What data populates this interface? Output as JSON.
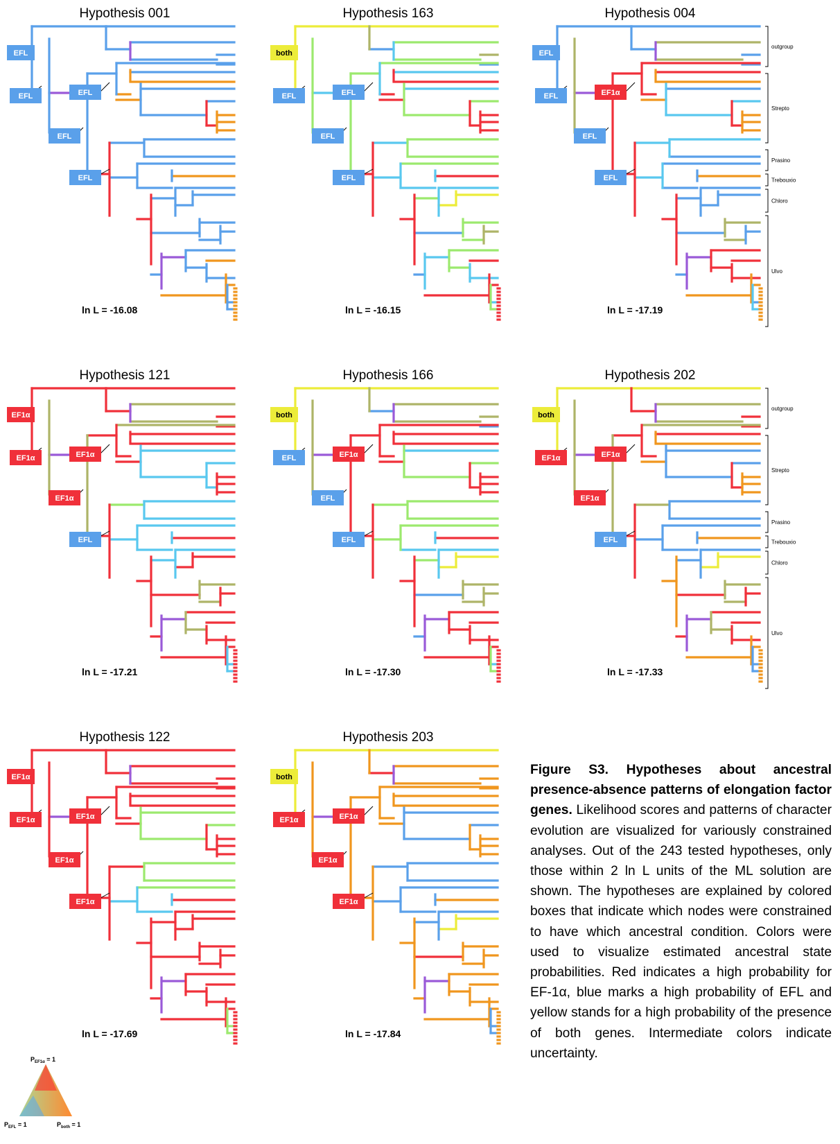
{
  "colors": {
    "ef1a": "#f0303a",
    "efl": "#5aa0ea",
    "both": "#ecec3a",
    "orange": "#f0961e",
    "cyan": "#59c8ef",
    "green": "#9ce96e",
    "olive": "#aeb468",
    "violet": "#9a5ad8"
  },
  "panels": [
    {
      "title": "Hypothesis 001",
      "score": "ln L = -16.08",
      "clades": false,
      "boxes": [
        {
          "label": "EFL",
          "type": "efl"
        },
        {
          "label": "EFL",
          "type": "efl"
        },
        {
          "label": "EFL",
          "type": "efl"
        },
        {
          "label": "EFL",
          "type": "efl"
        },
        {
          "label": "EFL",
          "type": "efl"
        }
      ],
      "scheme": [
        "efl",
        "efl",
        "efl",
        "efl",
        "efl",
        "efl",
        "efl",
        "violet",
        "efl",
        "efl",
        "orange",
        "efl",
        "orange",
        "orange",
        "efl",
        "efl",
        "efl",
        "ef1a",
        "orange",
        "orange",
        "orange",
        "ef1a",
        "efl",
        "efl",
        "efl",
        "efl",
        "efl",
        "efl",
        "orange",
        "ef1a",
        "efl",
        "efl"
      ]
    },
    {
      "title": "Hypothesis 163",
      "score": "ln L = -16.15",
      "clades": false,
      "boxes": [
        {
          "label": "both",
          "type": "both"
        },
        {
          "label": "EFL",
          "type": "efl"
        },
        {
          "label": "EFL",
          "type": "efl"
        },
        {
          "label": "EFL",
          "type": "efl"
        },
        {
          "label": "EFL",
          "type": "efl"
        }
      ],
      "scheme": [
        "both",
        "both",
        "efl",
        "green",
        "green",
        "olive",
        "efl",
        "cyan",
        "green",
        "green",
        "ef1a",
        "cyan",
        "ef1a",
        "ef1a",
        "cyan",
        "green",
        "green",
        "ef1a",
        "ef1a",
        "ef1a",
        "ef1a",
        "ef1a",
        "cyan",
        "green",
        "green",
        "cyan",
        "green",
        "cyan",
        "ef1a",
        "ef1a",
        "green",
        "cyan"
      ]
    },
    {
      "title": "Hypothesis 004",
      "score": "ln L = -17.19",
      "clades": true,
      "boxes": [
        {
          "label": "EFL",
          "type": "efl"
        },
        {
          "label": "EFL",
          "type": "efl"
        },
        {
          "label": "EF1α",
          "type": "ef1a"
        },
        {
          "label": "EFL",
          "type": "efl"
        },
        {
          "label": "EFL",
          "type": "efl"
        }
      ],
      "scheme": [
        "efl",
        "efl",
        "efl",
        "olive",
        "olive",
        "efl",
        "efl",
        "violet",
        "ef1a",
        "ef1a",
        "ef1a",
        "ef1a",
        "orange",
        "orange",
        "efl",
        "cyan",
        "cyan",
        "ef1a",
        "orange",
        "orange",
        "orange",
        "ef1a",
        "cyan",
        "cyan",
        "efl",
        "cyan",
        "efl",
        "efl",
        "orange",
        "ef1a",
        "efl",
        "efl"
      ]
    },
    {
      "title": "Hypothesis 121",
      "score": "ln L = -17.21",
      "clades": false,
      "boxes": [
        {
          "label": "EF1α",
          "type": "ef1a"
        },
        {
          "label": "EF1α",
          "type": "ef1a"
        },
        {
          "label": "EF1α",
          "type": "ef1a"
        },
        {
          "label": "EF1α",
          "type": "ef1a"
        },
        {
          "label": "EFL",
          "type": "efl"
        }
      ],
      "scheme": [
        "ef1a",
        "ef1a",
        "ef1a",
        "olive",
        "olive",
        "ef1a",
        "ef1a",
        "violet",
        "ef1a",
        "olive",
        "ef1a",
        "ef1a",
        "ef1a",
        "ef1a",
        "cyan",
        "cyan",
        "cyan",
        "cyan",
        "ef1a",
        "ef1a",
        "ef1a",
        "ef1a",
        "green",
        "cyan",
        "cyan",
        "cyan",
        "cyan",
        "cyan",
        "ef1a",
        "ef1a",
        "cyan",
        "cyan"
      ]
    },
    {
      "title": "Hypothesis 166",
      "score": "ln L = -17.30",
      "clades": false,
      "boxes": [
        {
          "label": "both",
          "type": "both"
        },
        {
          "label": "EFL",
          "type": "efl"
        },
        {
          "label": "EF1α",
          "type": "ef1a"
        },
        {
          "label": "EFL",
          "type": "efl"
        },
        {
          "label": "EFL",
          "type": "efl"
        }
      ],
      "scheme": [
        "both",
        "both",
        "efl",
        "olive",
        "olive",
        "olive",
        "efl",
        "violet",
        "ef1a",
        "ef1a",
        "ef1a",
        "ef1a",
        "ef1a",
        "ef1a",
        "cyan",
        "green",
        "green",
        "ef1a",
        "ef1a",
        "ef1a",
        "ef1a",
        "ef1a",
        "green",
        "green",
        "green",
        "green",
        "green",
        "cyan",
        "ef1a",
        "ef1a",
        "green",
        "cyan"
      ]
    },
    {
      "title": "Hypothesis 202",
      "score": "ln L = -17.33",
      "clades": true,
      "boxes": [
        {
          "label": "both",
          "type": "both"
        },
        {
          "label": "EF1α",
          "type": "ef1a"
        },
        {
          "label": "EF1α",
          "type": "ef1a"
        },
        {
          "label": "EF1α",
          "type": "ef1a"
        },
        {
          "label": "EFL",
          "type": "efl"
        }
      ],
      "scheme": [
        "both",
        "both",
        "ef1a",
        "olive",
        "olive",
        "ef1a",
        "ef1a",
        "violet",
        "ef1a",
        "olive",
        "ef1a",
        "ef1a",
        "orange",
        "orange",
        "efl",
        "efl",
        "efl",
        "ef1a",
        "orange",
        "orange",
        "orange",
        "ef1a",
        "olive",
        "efl",
        "efl",
        "efl",
        "efl",
        "efl",
        "orange",
        "orange",
        "efl",
        "efl"
      ]
    },
    {
      "title": "Hypothesis 122",
      "score": "ln L = -17.69",
      "clades": false,
      "boxes": [
        {
          "label": "EF1α",
          "type": "ef1a"
        },
        {
          "label": "EF1α",
          "type": "ef1a"
        },
        {
          "label": "EF1α",
          "type": "ef1a"
        },
        {
          "label": "EF1α",
          "type": "ef1a"
        },
        {
          "label": "EF1α",
          "type": "ef1a"
        }
      ],
      "scheme": [
        "ef1a",
        "ef1a",
        "ef1a",
        "ef1a",
        "ef1a",
        "ef1a",
        "ef1a",
        "violet",
        "ef1a",
        "ef1a",
        "ef1a",
        "ef1a",
        "ef1a",
        "ef1a",
        "green",
        "green",
        "green",
        "ef1a",
        "ef1a",
        "ef1a",
        "ef1a",
        "ef1a",
        "ef1a",
        "green",
        "green",
        "cyan",
        "green",
        "cyan",
        "ef1a",
        "ef1a",
        "ef1a",
        "ef1a"
      ]
    },
    {
      "title": "Hypothesis 203",
      "score": "ln L = -17.84",
      "clades": false,
      "boxes": [
        {
          "label": "both",
          "type": "both"
        },
        {
          "label": "EF1α",
          "type": "ef1a"
        },
        {
          "label": "EF1α",
          "type": "ef1a"
        },
        {
          "label": "EF1α",
          "type": "ef1a"
        },
        {
          "label": "EF1α",
          "type": "ef1a"
        }
      ],
      "scheme": [
        "both",
        "both",
        "ef1a",
        "orange",
        "orange",
        "orange",
        "orange",
        "violet",
        "orange",
        "orange",
        "orange",
        "orange",
        "orange",
        "orange",
        "efl",
        "efl",
        "efl",
        "orange",
        "orange",
        "orange",
        "orange",
        "orange",
        "efl",
        "efl",
        "efl",
        "efl",
        "efl",
        "efl",
        "orange",
        "orange",
        "efl",
        "efl"
      ]
    }
  ],
  "clade_labels": [
    "outgroup",
    "Strepto",
    "Prasino",
    "Trebouxio",
    "Chloro",
    "Ulvo"
  ],
  "legend": {
    "top": "P",
    "top_sub": "EF1α",
    "left": "P",
    "left_sub": "EFL",
    "right": "P",
    "right_sub": "both",
    "eq": " = 1"
  },
  "caption": {
    "heading": "Figure S3. Hypotheses about ancestral presence-absence patterns of elongation factor genes.",
    "body": " Likelihood scores and patterns of character evolution are visualized for variously constrained analyses. Out of the 243 tested hypotheses, only those within 2 ln L units of the ML solution are shown. The hypotheses are explained by colored boxes that indicate which nodes were constrained to have which ancestral condition. Colors were used to visualize estimated ancestral state probabilities. Red indicates a high probability for EF-1α, blue marks a high probability of EFL and yellow stands for a high probability of the presence of both genes. Intermediate colors indicate uncertainty."
  }
}
